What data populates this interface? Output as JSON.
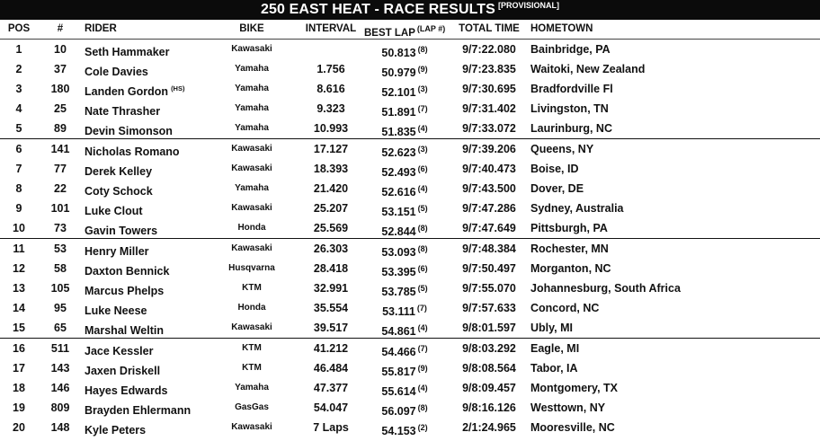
{
  "title": "250 EAST HEAT - RACE RESULTS",
  "title_badge": "[PROVISIONAL]",
  "headers": {
    "pos": "POS",
    "num": "#",
    "rider": "RIDER",
    "bike": "BIKE",
    "interval": "INTERVAL",
    "best_lap": "BEST LAP",
    "best_lap_sup": "(LAP #)",
    "total_time": "TOTAL TIME",
    "hometown": "HOMETOWN"
  },
  "rows": [
    {
      "pos": "1",
      "num": "10",
      "rider": "Seth Hammaker",
      "rider_tag": "",
      "bike": "Kawasaki",
      "interval": "",
      "best_lap": "50.813",
      "lap": "(8)",
      "total_time": "9/7:22.080",
      "hometown": "Bainbridge, PA"
    },
    {
      "pos": "2",
      "num": "37",
      "rider": "Cole Davies",
      "rider_tag": "",
      "bike": "Yamaha",
      "interval": "1.756",
      "best_lap": "50.979",
      "lap": "(9)",
      "total_time": "9/7:23.835",
      "hometown": "Waitoki, New Zealand"
    },
    {
      "pos": "3",
      "num": "180",
      "rider": "Landen Gordon",
      "rider_tag": "(HS)",
      "bike": "Yamaha",
      "interval": "8.616",
      "best_lap": "52.101",
      "lap": "(3)",
      "total_time": "9/7:30.695",
      "hometown": "Bradfordville Fl"
    },
    {
      "pos": "4",
      "num": "25",
      "rider": "Nate Thrasher",
      "rider_tag": "",
      "bike": "Yamaha",
      "interval": "9.323",
      "best_lap": "51.891",
      "lap": "(7)",
      "total_time": "9/7:31.402",
      "hometown": "Livingston, TN"
    },
    {
      "pos": "5",
      "num": "89",
      "rider": "Devin Simonson",
      "rider_tag": "",
      "bike": "Yamaha",
      "interval": "10.993",
      "best_lap": "51.835",
      "lap": "(4)",
      "total_time": "9/7:33.072",
      "hometown": "Laurinburg, NC"
    },
    {
      "pos": "6",
      "num": "141",
      "rider": "Nicholas Romano",
      "rider_tag": "",
      "bike": "Kawasaki",
      "interval": "17.127",
      "best_lap": "52.623",
      "lap": "(3)",
      "total_time": "9/7:39.206",
      "hometown": "Queens, NY"
    },
    {
      "pos": "7",
      "num": "77",
      "rider": "Derek Kelley",
      "rider_tag": "",
      "bike": "Kawasaki",
      "interval": "18.393",
      "best_lap": "52.493",
      "lap": "(6)",
      "total_time": "9/7:40.473",
      "hometown": "Boise, ID"
    },
    {
      "pos": "8",
      "num": "22",
      "rider": "Coty Schock",
      "rider_tag": "",
      "bike": "Yamaha",
      "interval": "21.420",
      "best_lap": "52.616",
      "lap": "(4)",
      "total_time": "9/7:43.500",
      "hometown": "Dover, DE"
    },
    {
      "pos": "9",
      "num": "101",
      "rider": "Luke Clout",
      "rider_tag": "",
      "bike": "Kawasaki",
      "interval": "25.207",
      "best_lap": "53.151",
      "lap": "(5)",
      "total_time": "9/7:47.286",
      "hometown": "Sydney, Australia"
    },
    {
      "pos": "10",
      "num": "73",
      "rider": "Gavin Towers",
      "rider_tag": "",
      "bike": "Honda",
      "interval": "25.569",
      "best_lap": "52.844",
      "lap": "(8)",
      "total_time": "9/7:47.649",
      "hometown": "Pittsburgh, PA"
    },
    {
      "pos": "11",
      "num": "53",
      "rider": "Henry Miller",
      "rider_tag": "",
      "bike": "Kawasaki",
      "interval": "26.303",
      "best_lap": "53.093",
      "lap": "(8)",
      "total_time": "9/7:48.384",
      "hometown": "Rochester, MN"
    },
    {
      "pos": "12",
      "num": "58",
      "rider": "Daxton Bennick",
      "rider_tag": "",
      "bike": "Husqvarna",
      "interval": "28.418",
      "best_lap": "53.395",
      "lap": "(6)",
      "total_time": "9/7:50.497",
      "hometown": "Morganton, NC"
    },
    {
      "pos": "13",
      "num": "105",
      "rider": "Marcus Phelps",
      "rider_tag": "",
      "bike": "KTM",
      "interval": "32.991",
      "best_lap": "53.785",
      "lap": "(5)",
      "total_time": "9/7:55.070",
      "hometown": "Johannesburg, South Africa"
    },
    {
      "pos": "14",
      "num": "95",
      "rider": "Luke Neese",
      "rider_tag": "",
      "bike": "Honda",
      "interval": "35.554",
      "best_lap": "53.111",
      "lap": "(7)",
      "total_time": "9/7:57.633",
      "hometown": "Concord, NC"
    },
    {
      "pos": "15",
      "num": "65",
      "rider": "Marshal Weltin",
      "rider_tag": "",
      "bike": "Kawasaki",
      "interval": "39.517",
      "best_lap": "54.861",
      "lap": "(4)",
      "total_time": "9/8:01.597",
      "hometown": "Ubly, MI"
    },
    {
      "pos": "16",
      "num": "511",
      "rider": "Jace Kessler",
      "rider_tag": "",
      "bike": "KTM",
      "interval": "41.212",
      "best_lap": "54.466",
      "lap": "(7)",
      "total_time": "9/8:03.292",
      "hometown": "Eagle, MI"
    },
    {
      "pos": "17",
      "num": "143",
      "rider": "Jaxen Driskell",
      "rider_tag": "",
      "bike": "KTM",
      "interval": "46.484",
      "best_lap": "55.817",
      "lap": "(9)",
      "total_time": "9/8:08.564",
      "hometown": "Tabor, IA"
    },
    {
      "pos": "18",
      "num": "146",
      "rider": "Hayes Edwards",
      "rider_tag": "",
      "bike": "Yamaha",
      "interval": "47.377",
      "best_lap": "55.614",
      "lap": "(4)",
      "total_time": "9/8:09.457",
      "hometown": "Montgomery, TX"
    },
    {
      "pos": "19",
      "num": "809",
      "rider": "Brayden Ehlermann",
      "rider_tag": "",
      "bike": "GasGas",
      "interval": "54.047",
      "best_lap": "56.097",
      "lap": "(8)",
      "total_time": "9/8:16.126",
      "hometown": "Westtown, NY"
    },
    {
      "pos": "20",
      "num": "148",
      "rider": "Kyle Peters",
      "rider_tag": "",
      "bike": "Kawasaki",
      "interval": "7 Laps",
      "best_lap": "54.153",
      "lap": "(2)",
      "total_time": "2/1:24.965",
      "hometown": "Mooresville, NC"
    }
  ]
}
